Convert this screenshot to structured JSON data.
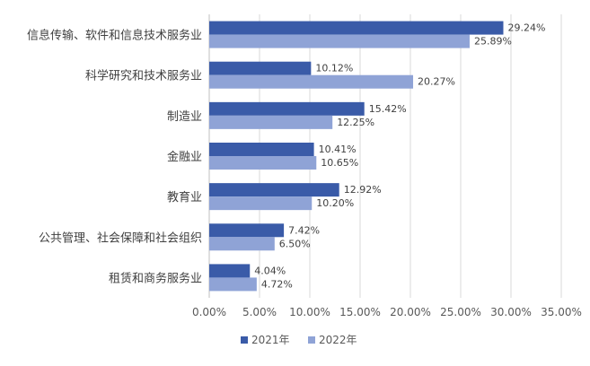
{
  "chart_data": {
    "type": "bar",
    "orientation": "horizontal",
    "categories": [
      "信息传输、软件和信息技术服务业",
      "科学研究和技术服务业",
      "制造业",
      "金融业",
      "教育业",
      "公共管理、社会保障和社会组织",
      "租赁和商务服务业"
    ],
    "series": [
      {
        "name": "2021年",
        "color": "#3a5ba8",
        "values": [
          29.24,
          10.12,
          15.42,
          10.41,
          12.92,
          7.42,
          4.04
        ],
        "labels": [
          "29.24%",
          "10.12%",
          "15.42%",
          "10.41%",
          "12.92%",
          "7.42%",
          "4.04%"
        ]
      },
      {
        "name": "2022年",
        "color": "#8fa3d6",
        "values": [
          25.89,
          20.27,
          12.25,
          10.65,
          10.2,
          6.5,
          4.72
        ],
        "labels": [
          "25.89%",
          "20.27%",
          "12.25%",
          "10.65%",
          "10.20%",
          "6.50%",
          "4.72%"
        ]
      }
    ],
    "xlim": [
      0,
      35
    ],
    "ticks": [
      "0.00%",
      "5.00%",
      "10.00%",
      "15.00%",
      "20.00%",
      "25.00%",
      "30.00%",
      "35.00%"
    ],
    "grid": true,
    "legend_position": "bottom",
    "title": "",
    "xlabel": "",
    "ylabel": ""
  }
}
